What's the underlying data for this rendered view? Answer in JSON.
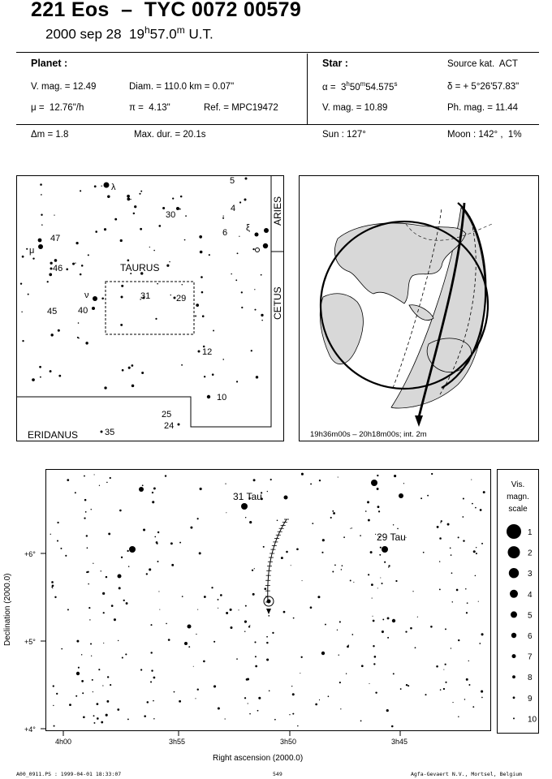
{
  "header": {
    "title": "221 Eos  –  TYC 0072 00579",
    "date": "2000 sep 28",
    "time_h": "19",
    "time_sup_h": "h",
    "time_m": "57.0",
    "time_sup_m": "m",
    "time_ut": " U.T."
  },
  "planet": {
    "heading": "Planet :",
    "vmag": "V. mag. = 12.49",
    "diam": "Diam. = 110.0 km = 0.07\"",
    "mu": "μ =  12.76\"/h",
    "pi": "π =  4.13\"",
    "ref": "Ref. = MPC19472"
  },
  "star": {
    "heading": "Star :",
    "source": "Source kat.  ACT",
    "alpha_pre": "α =  3",
    "alpha_h": "h",
    "alpha_m_val": "50",
    "alpha_m": "m",
    "alpha_s_val": "54.575",
    "alpha_s": "s",
    "delta": "δ = + 5°26'57.83\"",
    "vmag": "V. mag. = 10.89",
    "phmag": "Ph. mag. = 11.44"
  },
  "summary": {
    "dm": "Δm = 1.8",
    "maxdur": "Max. dur. = 20.1s",
    "sun": "Sun : 127°",
    "moon": "Moon : 142° ,  1%"
  },
  "finder": {
    "constellations": [
      "TAURUS",
      "ARIES",
      "CETUS",
      "ERIDANUS"
    ],
    "star_labels": [
      {
        "t": "λ",
        "k": "lambda"
      },
      {
        "t": "30",
        "k": "30"
      },
      {
        "t": "5",
        "k": "5"
      },
      {
        "t": "4",
        "k": "4"
      },
      {
        "t": "6",
        "k": "6"
      },
      {
        "t": "ξ",
        "k": "xi"
      },
      {
        "t": "47",
        "k": "47"
      },
      {
        "t": "μ",
        "k": "mu"
      },
      {
        "t": "46",
        "k": "46"
      },
      {
        "t": "ν",
        "k": "nu"
      },
      {
        "t": "31",
        "k": "31"
      },
      {
        "t": "29",
        "k": "29"
      },
      {
        "t": "45",
        "k": "45"
      },
      {
        "t": "40",
        "k": "40"
      },
      {
        "t": "12",
        "k": "12"
      },
      {
        "t": "10",
        "k": "10"
      },
      {
        "t": "25",
        "k": "25"
      },
      {
        "t": "24",
        "k": "24"
      },
      {
        "t": "35",
        "k": "35"
      }
    ]
  },
  "globe": {
    "caption": "19h36m00s – 20h18m00s; int.  2m"
  },
  "detail": {
    "star_labels": [
      "31 Tau",
      "29 Tau"
    ],
    "y_ticks": [
      "+6°",
      "+5°",
      "+4°"
    ],
    "x_ticks": [
      "4h00",
      "3h55",
      "3h50",
      "3h45"
    ],
    "xlabel": "Right ascension (2000.0)",
    "ylabel": "Declination (2000.0)"
  },
  "scale": {
    "title_lines": [
      "Vis.",
      "magn.",
      "scale"
    ],
    "mags": [
      "1",
      "2",
      "3",
      "4",
      "5",
      "6",
      "7",
      "8",
      "9",
      "10"
    ]
  },
  "footer": {
    "left": "A00_0911.PS : 1999-04-01 18:33:07",
    "center": "549",
    "right": "Agfa-Gevaert N.V., Mortsel, Belgium"
  }
}
